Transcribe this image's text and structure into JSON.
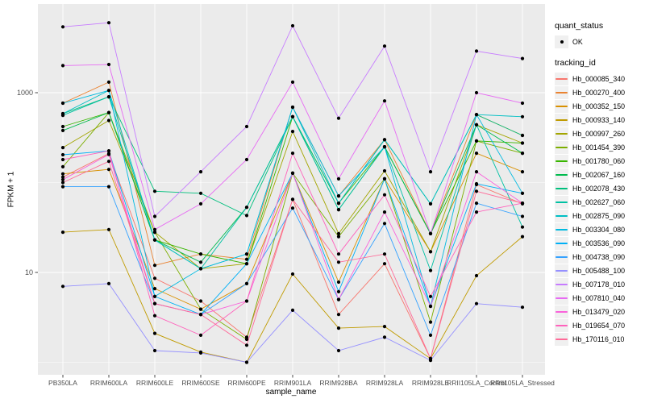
{
  "figure": {
    "colors": {
      "panel_bg": "#EBEBEB",
      "grid": "#FFFFFF",
      "legend_key_bg": "#F0F0F0",
      "tick_text": "#4D4D4D",
      "axis_text": "#000000",
      "point": "#000000"
    },
    "legend": {
      "quant_status": {
        "title": "quant_status",
        "items": [
          {
            "label": "OK",
            "symbol": "point"
          }
        ]
      },
      "tracking_id": {
        "title": "tracking_id"
      }
    }
  },
  "chart_data": {
    "type": "line",
    "title": "",
    "xlabel": "sample_name",
    "ylabel": "FPKM + 1",
    "y_scale": "log10",
    "ylim": [
      0.7,
      9500
    ],
    "y_major_ticks": [
      10,
      1000
    ],
    "y_tick_labels": [
      "10",
      "1000"
    ],
    "y_minor_gridlines": [
      1,
      100
    ],
    "grid": true,
    "legend_position": "right",
    "point_color": "#000000",
    "quant_status": "OK",
    "categories": [
      "PB350LA",
      "RRIM600LA",
      "RRIM600LE",
      "RRIM600SE",
      "RRIM600PE",
      "RRIM901LA",
      "RRIM928BA",
      "RRIM928LA",
      "RRIM928LE",
      "RRII105LA_Control",
      "RRII105LA_Stressed"
    ],
    "series": [
      {
        "name": "Hb_000085_340",
        "color": "#F8766D",
        "values": [
          115,
          210,
          8.6,
          4.8,
          1.9,
          65,
          3.4,
          12.5,
          1.1,
          95,
          58
        ]
      },
      {
        "name": "Hb_000270_400",
        "color": "#EA8331",
        "values": [
          765,
          1310,
          12,
          16,
          14,
          690,
          71,
          300,
          27,
          570,
          335
        ]
      },
      {
        "name": "Hb_000352_150",
        "color": "#D89000",
        "values": [
          125,
          140,
          6.6,
          3.9,
          7.5,
          127,
          7.8,
          110,
          17,
          212,
          132
        ]
      },
      {
        "name": "Hb_000933_140",
        "color": "#C09B00",
        "values": [
          28,
          30,
          2.1,
          1.3,
          1.0,
          9.6,
          2.4,
          2.5,
          1.1,
          9.2,
          25
        ]
      },
      {
        "name": "Hb_000997_260",
        "color": "#A3A500",
        "values": [
          245,
          490,
          28,
          11,
          12.5,
          370,
          27,
          135,
          17,
          440,
          275
        ]
      },
      {
        "name": "Hb_001454_390",
        "color": "#7CAE00",
        "values": [
          150,
          600,
          28,
          3.9,
          1.8,
          127,
          25,
          110,
          2.8,
          290,
          212
        ]
      },
      {
        "name": "Hb_001780_060",
        "color": "#39B600",
        "values": [
          420,
          600,
          23,
          16,
          12.5,
          540,
          59,
          250,
          27,
          290,
          275
        ]
      },
      {
        "name": "Hb_002067_160",
        "color": "#00BB4E",
        "values": [
          380,
          600,
          23,
          13,
          53,
          540,
          50,
          250,
          27,
          440,
          212
        ]
      },
      {
        "name": "Hb_002078_430",
        "color": "#00BF7D",
        "values": [
          585,
          900,
          80,
          76,
          43,
          540,
          59,
          300,
          58,
          570,
          335
        ]
      },
      {
        "name": "Hb_002627_060",
        "color": "#00C1A3",
        "values": [
          560,
          900,
          23,
          11,
          53,
          540,
          50,
          250,
          10.5,
          440,
          32
        ]
      },
      {
        "name": "Hb_002875_090",
        "color": "#00BFC4",
        "values": [
          585,
          1060,
          23,
          11,
          16,
          690,
          59,
          300,
          58,
          570,
          540
        ]
      },
      {
        "name": "Hb_003304_080",
        "color": "#00BAE0",
        "values": [
          765,
          1060,
          5.4,
          11,
          16,
          690,
          71,
          250,
          4.2,
          570,
          76
        ]
      },
      {
        "name": "Hb_003536_090",
        "color": "#00B0F6",
        "values": [
          204,
          225,
          5.4,
          3.4,
          12.5,
          127,
          6.1,
          110,
          4.2,
          97,
          76
        ]
      },
      {
        "name": "Hb_004738_090",
        "color": "#35A2FF",
        "values": [
          90,
          90,
          4.5,
          3.4,
          7.5,
          52,
          5.0,
          35,
          2.0,
          59,
          42
        ]
      },
      {
        "name": "Hb_005488_100",
        "color": "#9590FF",
        "values": [
          7,
          7.5,
          1.35,
          1.27,
          1.0,
          3.8,
          1.35,
          1.9,
          1.05,
          4.5,
          4.1
        ]
      },
      {
        "name": "Hb_007178_010",
        "color": "#C77CFF",
        "values": [
          5400,
          6000,
          42,
          132,
          420,
          5550,
          520,
          3300,
          132,
          2900,
          2400
        ]
      },
      {
        "name": "Hb_007810_040",
        "color": "#E76BF3",
        "values": [
          2000,
          2060,
          30,
          58,
          180,
          1310,
          110,
          810,
          27,
          1000,
          765
        ]
      },
      {
        "name": "Hb_013479_020",
        "color": "#FA62DB",
        "values": [
          108,
          205,
          4.5,
          3.4,
          4.8,
          127,
          5.0,
          47,
          4.2,
          132,
          59
        ]
      },
      {
        "name": "Hb_019654_070",
        "color": "#FF62BC",
        "values": [
          180,
          225,
          3.3,
          2.0,
          4.8,
          212,
          16,
          73,
          5.4,
          47,
          59
        ]
      },
      {
        "name": "Hb_170116_010",
        "color": "#FF6A98",
        "values": [
          100,
          172,
          4.5,
          3.4,
          1.55,
          65,
          13,
          16,
          1.1,
          80,
          59
        ]
      }
    ]
  }
}
